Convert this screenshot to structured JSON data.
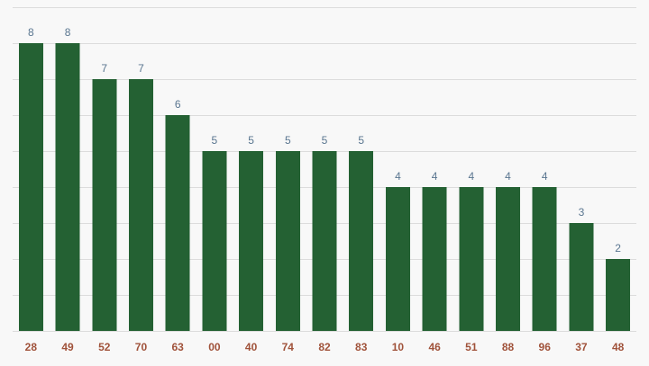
{
  "chart_data": {
    "type": "bar",
    "categories": [
      "28",
      "49",
      "52",
      "70",
      "63",
      "00",
      "40",
      "74",
      "82",
      "83",
      "10",
      "46",
      "51",
      "88",
      "96",
      "37",
      "48"
    ],
    "values": [
      8,
      8,
      7,
      7,
      6,
      5,
      5,
      5,
      5,
      5,
      4,
      4,
      4,
      4,
      4,
      3,
      2
    ],
    "ylim": [
      0,
      9
    ],
    "grid": true,
    "value_labels": true,
    "colors": {
      "bar": "#246133",
      "value_label": "#5a7690",
      "tick_label": "#a0523a",
      "grid": "#dcdcdc",
      "background": "#f8f8f8"
    }
  }
}
